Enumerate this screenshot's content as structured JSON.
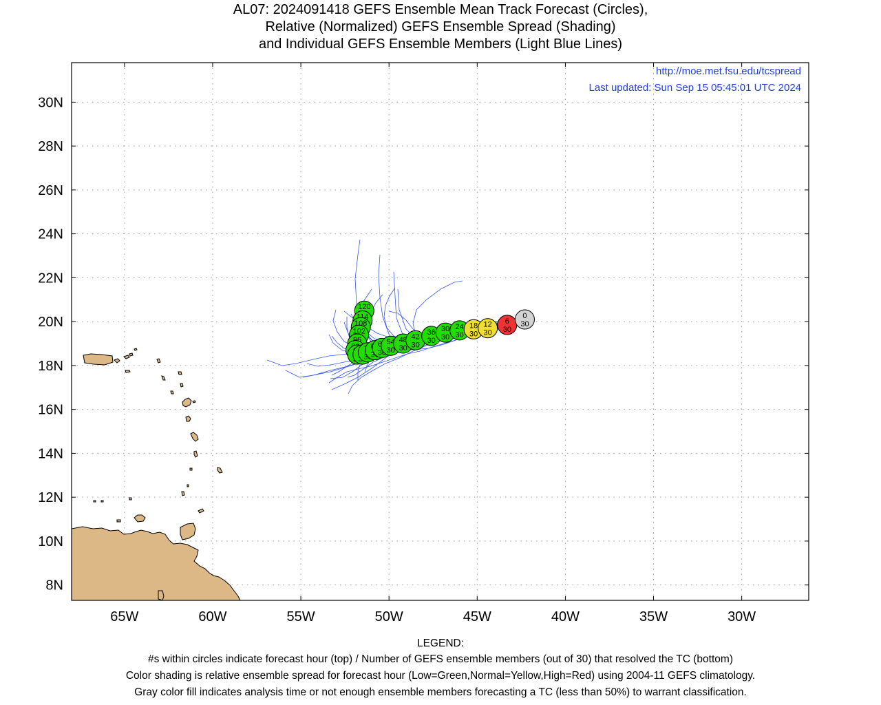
{
  "title": {
    "line1": "AL07: 2024091418 GEFS Ensemble Mean Track Forecast (Circles),",
    "line2": "Relative (Normalized) GEFS Ensemble Spread (Shading)",
    "line3": "and Individual GEFS Ensemble Members (Light Blue Lines)"
  },
  "annotations": {
    "url": "http://moe.met.fsu.edu/tcspread",
    "updated": "Last updated: Sun Sep 15 05:45:01 UTC 2024"
  },
  "axes": {
    "lon_labels": [
      "65W",
      "60W",
      "55W",
      "50W",
      "45W",
      "40W",
      "35W",
      "30W"
    ],
    "lon_values": [
      -65,
      -60,
      -55,
      -50,
      -45,
      -40,
      -35,
      -30
    ],
    "lat_labels": [
      "8N",
      "10N",
      "12N",
      "14N",
      "16N",
      "18N",
      "20N",
      "22N",
      "24N",
      "26N",
      "28N",
      "30N"
    ],
    "lat_values": [
      8,
      10,
      12,
      14,
      16,
      18,
      20,
      22,
      24,
      26,
      28,
      30
    ],
    "lon_range": [
      -68,
      -26.2
    ],
    "lat_range": [
      7.3,
      31.8
    ],
    "grid": true
  },
  "colors": {
    "green": "#22dd00",
    "yellow": "#eedd33",
    "red": "#ee3333",
    "gray": "#d3d3d3",
    "land": "#dcb886",
    "member_line": "#3355ee",
    "annotation": "#1f3fe0"
  },
  "mean_track": [
    {
      "hour": "0",
      "members": "30",
      "lon": -42.3,
      "lat": 20.1,
      "color": "gray"
    },
    {
      "hour": "6",
      "members": "30",
      "lon": -43.3,
      "lat": 19.85,
      "color": "red"
    },
    {
      "hour": "12",
      "members": "30",
      "lon": -44.4,
      "lat": 19.7,
      "color": "yellow"
    },
    {
      "hour": "18",
      "members": "30",
      "lon": -45.2,
      "lat": 19.65,
      "color": "yellow"
    },
    {
      "hour": "24",
      "members": "30",
      "lon": -46.0,
      "lat": 19.6,
      "color": "green"
    },
    {
      "hour": "30",
      "members": "30",
      "lon": -46.8,
      "lat": 19.5,
      "color": "green"
    },
    {
      "hour": "36",
      "members": "30",
      "lon": -47.6,
      "lat": 19.35,
      "color": "green"
    },
    {
      "hour": "42",
      "members": "30",
      "lon": -48.5,
      "lat": 19.15,
      "color": "green"
    },
    {
      "hour": "48",
      "members": "30",
      "lon": -49.2,
      "lat": 19.0,
      "color": "green"
    },
    {
      "hour": "54",
      "members": "30",
      "lon": -49.9,
      "lat": 18.9,
      "color": "green"
    },
    {
      "hour": "60",
      "members": "30",
      "lon": -50.4,
      "lat": 18.8,
      "color": "green"
    },
    {
      "hour": "66",
      "members": "30",
      "lon": -50.8,
      "lat": 18.7,
      "color": "green"
    },
    {
      "hour": "72",
      "members": "30",
      "lon": -51.2,
      "lat": 18.6,
      "color": "green"
    },
    {
      "hour": "78",
      "members": "30",
      "lon": -51.5,
      "lat": 18.5,
      "color": "green"
    },
    {
      "hour": "84",
      "members": "30",
      "lon": -51.8,
      "lat": 18.5,
      "color": "green"
    },
    {
      "hour": "90",
      "members": "30",
      "lon": -51.9,
      "lat": 18.7,
      "color": "green"
    },
    {
      "hour": "96",
      "members": "30",
      "lon": -51.8,
      "lat": 19.0,
      "color": "green"
    },
    {
      "hour": "102",
      "members": "30",
      "lon": -51.7,
      "lat": 19.4,
      "color": "green"
    },
    {
      "hour": "108",
      "members": "29",
      "lon": -51.6,
      "lat": 19.75,
      "color": "green"
    },
    {
      "hour": "114",
      "members": "29",
      "lon": -51.5,
      "lat": 20.05,
      "color": "green"
    },
    {
      "hour": "120",
      "members": "28",
      "lon": -51.4,
      "lat": 20.5,
      "color": "green"
    }
  ],
  "legend": {
    "heading": "LEGEND:",
    "line1": "#s within circles indicate forecast hour (top) / Number of GEFS ensemble members (out of 30) that resolved the TC (bottom)",
    "line2": "Color shading is relative ensemble spread for forecast hour (Low=Green,Normal=Yellow,High=Red) using 2004-11 GEFS climatology.",
    "line3": "Gray color fill indicates analysis time or not enough ensemble members forecasting a TC (less than 50%) to warrant classification."
  }
}
